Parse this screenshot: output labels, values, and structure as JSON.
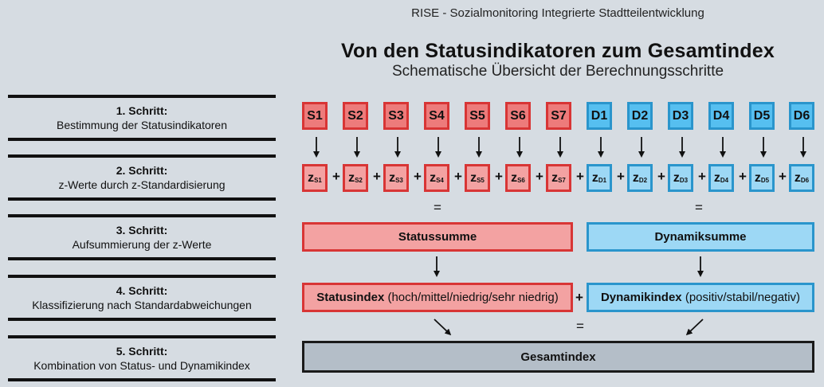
{
  "header": "RISE - Sozialmonitoring Integrierte Stadtteilentwicklung",
  "title": "Von den Statusindikatoren zum Gesamtindex",
  "subtitle": "Schematische Übersicht der Berechnungsschritte",
  "steps": [
    {
      "title": "1. Schritt:",
      "desc": "Bestimmung der Statusindikatoren"
    },
    {
      "title": "2. Schritt:",
      "desc": "z-Werte durch z-Standardisierung"
    },
    {
      "title": "3. Schritt:",
      "desc": "Aufsummierung der z-Werte"
    },
    {
      "title": "4. Schritt:",
      "desc": "Klassifizierung nach Standardabweichungen"
    },
    {
      "title": "5. Schritt:",
      "desc": "Kombination von Status- und Dynamikindex"
    }
  ],
  "status_indicators": [
    "S1",
    "S2",
    "S3",
    "S4",
    "S5",
    "S6",
    "S7"
  ],
  "dynamic_indicators": [
    "D1",
    "D2",
    "D3",
    "D4",
    "D5",
    "D6"
  ],
  "z_letter": "z",
  "status_z_subs": [
    "S1",
    "S2",
    "S3",
    "S4",
    "S5",
    "S6",
    "S7"
  ],
  "dynamic_z_subs": [
    "D1",
    "D2",
    "D3",
    "D4",
    "D5",
    "D6"
  ],
  "plus": "+",
  "equals": "=",
  "status_sum": "Statussumme",
  "dynamic_sum": "Dynamiksumme",
  "status_index": {
    "name": "Statusindex",
    "classes": "(hoch/mittel/niedrig/sehr niedrig)"
  },
  "dynamic_index": {
    "name": "Dynamikindex",
    "classes": "(positiv/stabil/negativ)"
  },
  "total_index": "Gesamtindex",
  "colors": {
    "status_fill": "#ed7b7b",
    "status_border": "#d83535",
    "dynamic_fill": "#56bff0",
    "dynamic_border": "#2a95cc",
    "total_fill": "#b4bec8",
    "background": "#d6dce2"
  }
}
